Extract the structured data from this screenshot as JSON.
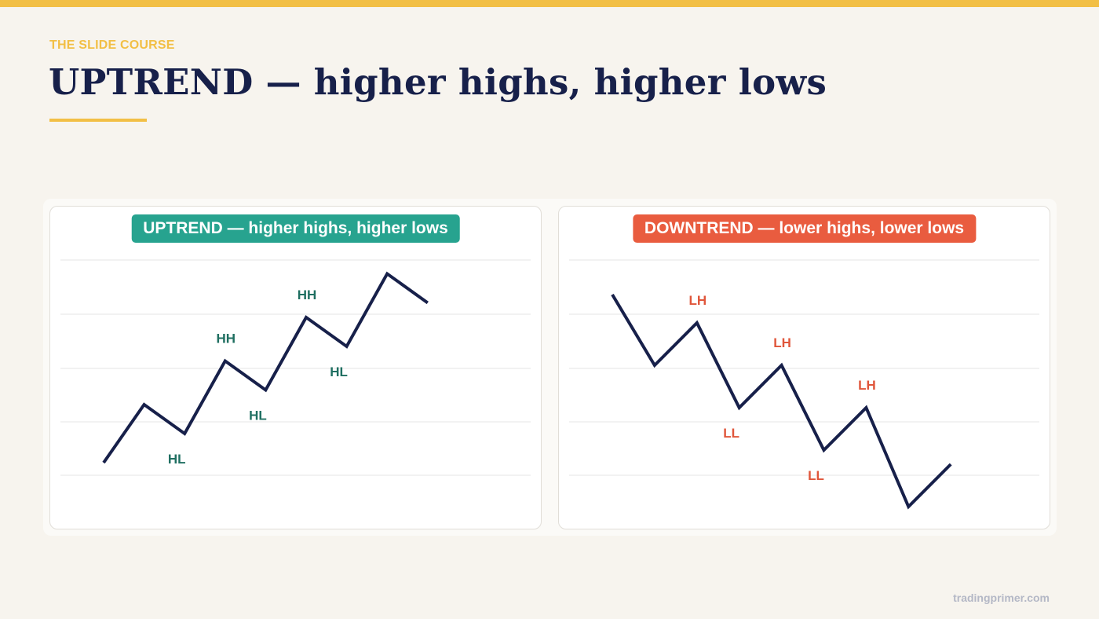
{
  "slide": {
    "eyebrow": "THE SLIDE COURSE",
    "title": "UPTREND — higher highs, higher lows",
    "footer": "tradingprimer.com",
    "colors": {
      "accent": "#f2bf45",
      "title": "#17204a",
      "line": "#17204a",
      "uptrend": "#27a38f",
      "uptrend_label": "#1f6f61",
      "downtrend": "#e95c3f",
      "downtrend_label": "#e0563b",
      "grid": "#e6e6e6"
    }
  },
  "diagrams": {
    "uptrend": {
      "badge": "UPTREND — higher highs, higher lows",
      "path": [
        [
          0,
          0
        ],
        [
          1,
          4
        ],
        [
          2,
          2
        ],
        [
          3,
          7
        ],
        [
          4,
          5
        ],
        [
          5,
          10
        ],
        [
          6,
          8
        ],
        [
          7,
          13
        ],
        [
          8,
          11
        ]
      ],
      "labels": [
        {
          "text": "HL",
          "at": 2
        },
        {
          "text": "HH",
          "at": 3
        },
        {
          "text": "HL",
          "at": 4
        },
        {
          "text": "HH",
          "at": 5
        },
        {
          "text": "HL",
          "at": 6
        }
      ]
    },
    "downtrend": {
      "badge": "DOWNTREND — lower highs, lower lows",
      "path": [
        [
          0,
          13
        ],
        [
          1,
          8
        ],
        [
          2,
          11
        ],
        [
          3,
          5
        ],
        [
          4,
          8
        ],
        [
          5,
          2
        ],
        [
          6,
          5
        ],
        [
          7,
          -2
        ],
        [
          8,
          1
        ]
      ],
      "labels": [
        {
          "text": "LH",
          "at": 2
        },
        {
          "text": "LL",
          "at": 3
        },
        {
          "text": "LH",
          "at": 4
        },
        {
          "text": "LL",
          "at": 5
        },
        {
          "text": "LH",
          "at": 6
        }
      ]
    }
  }
}
